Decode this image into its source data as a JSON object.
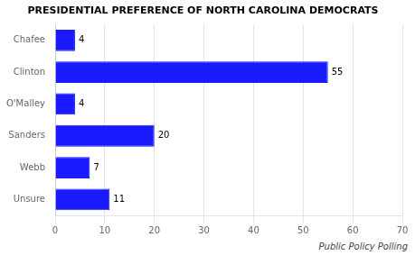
{
  "chart_data": {
    "type": "bar",
    "orientation": "horizontal",
    "title": "PRESIDENTIAL PREFERENCE OF NORTH CAROLINA DEMOCRATS",
    "categories": [
      "Unsure",
      "Webb",
      "Sanders",
      "O'Malley",
      "Clinton",
      "Chafee"
    ],
    "values": [
      11,
      7,
      20,
      4,
      55,
      4
    ],
    "color": "#1a1aff",
    "xlim": [
      0,
      70
    ],
    "xticks": [
      0,
      10,
      20,
      30,
      40,
      50,
      60,
      70
    ],
    "grid": true,
    "data_labels": true,
    "annotation": "Public Policy Polling"
  }
}
